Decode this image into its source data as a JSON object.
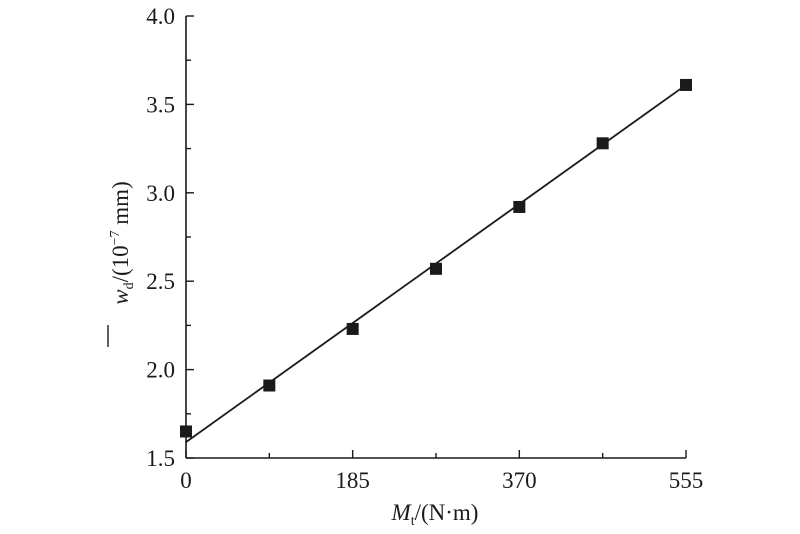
{
  "chart_data": {
    "type": "scatter",
    "x_ticks": [
      0,
      185,
      370,
      555
    ],
    "y_ticks": [
      1.5,
      2.0,
      2.5,
      3.0,
      3.5,
      4.0
    ],
    "x_tick_labels": [
      "0",
      "185",
      "370",
      "555"
    ],
    "y_tick_labels": [
      "1.5",
      "2.0",
      "2.5",
      "3.0",
      "3.5",
      "4.0"
    ],
    "xlim": [
      0,
      555
    ],
    "ylim": [
      1.5,
      4.0
    ],
    "xlabel": {
      "symbol": "M",
      "subscript": "t",
      "unit": "/(N·m)"
    },
    "ylabel": {
      "symbol": "w",
      "subscript": "d",
      "unit_prefix": "/(10",
      "superscript": "−7",
      "unit_suffix": " mm)"
    },
    "series": [
      {
        "marker": "square",
        "x": [
          0,
          92.5,
          185,
          277.5,
          370,
          462.5,
          555
        ],
        "y": [
          1.65,
          1.91,
          2.23,
          2.57,
          2.92,
          3.28,
          3.61
        ]
      }
    ],
    "fit_line": {
      "x": [
        0,
        555
      ],
      "y": [
        1.59,
        3.61
      ]
    },
    "grid": false,
    "legend": "none"
  }
}
